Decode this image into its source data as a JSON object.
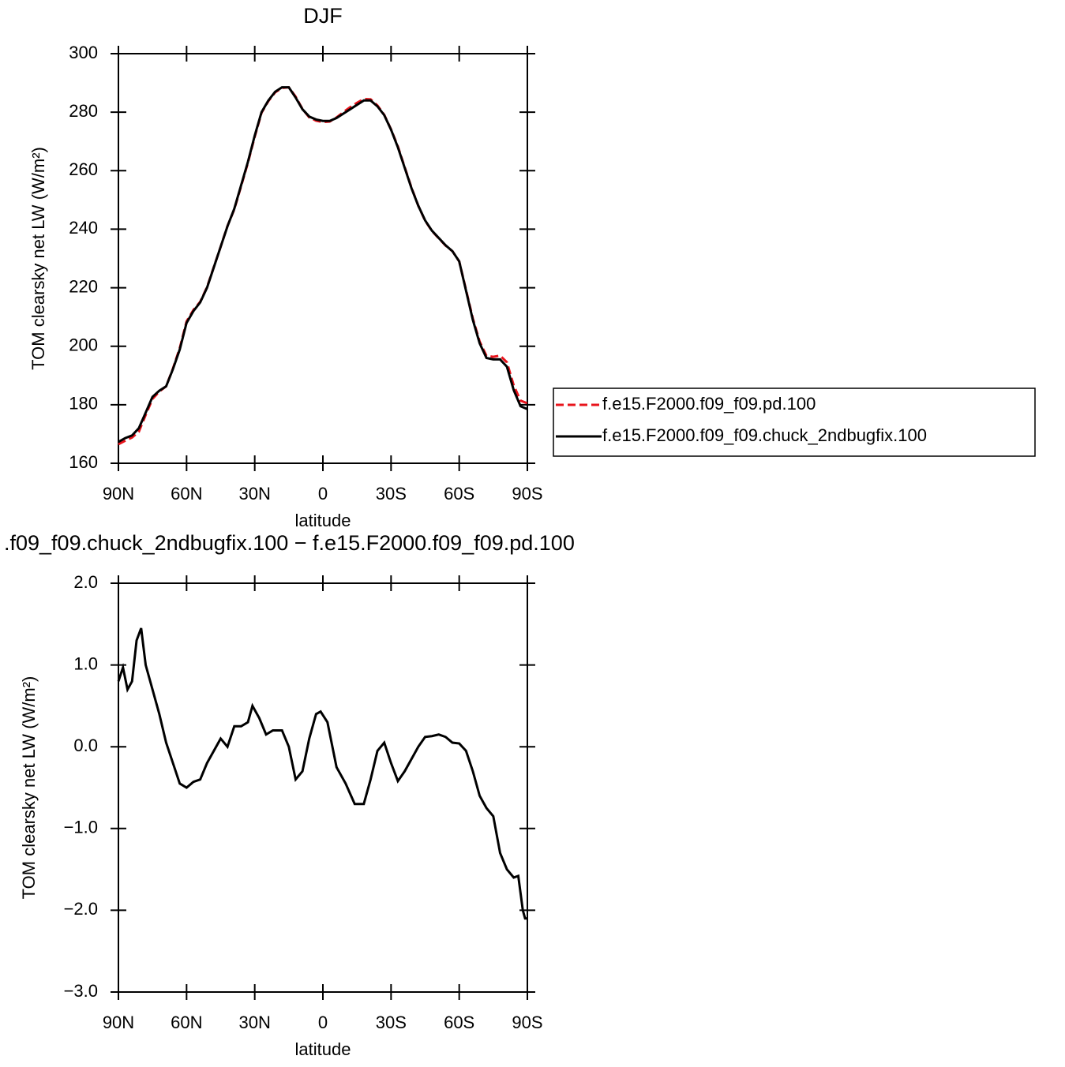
{
  "chart_data": [
    {
      "type": "line",
      "title": "DJF",
      "x_label": "latitude",
      "y_label": "TOM clearsky net LW (W/m²)",
      "x": [
        90,
        87,
        84,
        81,
        78,
        75,
        72,
        69,
        66,
        63,
        60,
        57,
        54,
        51,
        48,
        45,
        42,
        39,
        36,
        33,
        30,
        27,
        24,
        21,
        18,
        15,
        12,
        9,
        6,
        3,
        0,
        -3,
        -6,
        -9,
        -12,
        -15,
        -18,
        -21,
        -24,
        -27,
        -30,
        -33,
        -36,
        -39,
        -42,
        -45,
        -48,
        -51,
        -54,
        -57,
        -60,
        -63,
        -66,
        -69,
        -72,
        -75,
        -78,
        -81,
        -84,
        -87,
        -90
      ],
      "series": [
        {
          "name": "f.e15.F2000.f09_f09.pd.100",
          "color": "#e8141c",
          "dash": "dashed",
          "values": [
            166.5,
            167.7,
            168.8,
            170.8,
            176.5,
            182,
            184.5,
            186.3,
            192.4,
            199.4,
            208.5,
            212.4,
            215.2,
            220.2,
            227.1,
            234,
            241.1,
            246.8,
            254.7,
            262.7,
            271.6,
            279.8,
            283.8,
            286.8,
            288.3,
            288.5,
            285.3,
            281.1,
            278.2,
            277.1,
            276.6,
            276.8,
            278.2,
            280,
            281.7,
            283.2,
            284.5,
            284.4,
            282.3,
            279.1,
            274.1,
            268.3,
            261.2,
            254.2,
            248,
            242.9,
            239.4,
            236.9,
            234.4,
            232.5,
            229,
            219.3,
            209.5,
            201.6,
            196.7,
            196.4,
            196.8,
            194.5,
            186.6,
            181.4,
            180.5
          ]
        },
        {
          "name": "f.e15.F2000.f09_f09.chuck_2ndbugfix.100",
          "color": "#000000",
          "dash": "solid",
          "values": [
            167.3,
            168.6,
            169.5,
            172,
            177.3,
            182.7,
            184.8,
            186.3,
            192.2,
            198.9,
            208,
            212,
            215,
            220,
            227,
            234,
            241,
            247,
            255,
            263,
            272,
            280,
            284,
            287,
            288.5,
            288.5,
            285,
            281,
            278.5,
            277.5,
            277,
            277,
            278,
            279.5,
            281,
            282.5,
            284,
            284,
            282,
            279,
            274,
            268,
            261,
            254,
            248,
            243,
            239.5,
            237,
            234.5,
            232.5,
            229,
            219,
            209,
            201,
            196,
            195.5,
            195.5,
            193,
            185,
            179.5,
            178.5
          ]
        }
      ],
      "xlim": [
        90,
        -90
      ],
      "xticks": [
        {
          "value": 90,
          "label": "90N"
        },
        {
          "value": 60,
          "label": "60N"
        },
        {
          "value": 30,
          "label": "30N"
        },
        0,
        {
          "value": -30,
          "label": "30S"
        },
        {
          "value": -60,
          "label": "60S"
        },
        {
          "value": -90,
          "label": "90S"
        }
      ],
      "ylim": [
        160,
        300
      ],
      "yticks": [
        160,
        180,
        200,
        220,
        240,
        260,
        280,
        300
      ],
      "legend": "right",
      "grid": false
    },
    {
      "type": "line",
      "title": ".f09_f09.chuck_2ndbugfix.100 − f.e15.F2000.f09_f09.pd.100",
      "x_label": "latitude",
      "y_label": "TOM clearsky net LW (W/m²)",
      "x": [
        90,
        88,
        86,
        84,
        82,
        80,
        78,
        75,
        72,
        69,
        66,
        63,
        60,
        57,
        54,
        51,
        48,
        45,
        42,
        39,
        36,
        33,
        31,
        28,
        25,
        22,
        18,
        15,
        12,
        9,
        6,
        3,
        1,
        -2,
        -6,
        -10,
        -14,
        -18,
        -21,
        -24,
        -27,
        -30,
        -33,
        -36,
        -39,
        -42,
        -45,
        -48,
        -51,
        -54,
        -57,
        -60,
        -63,
        -66,
        -69,
        -72,
        -75,
        -78,
        -81,
        -84,
        -86,
        -88,
        -89,
        -90
      ],
      "series": [
        {
          "name": null,
          "color": "#000000",
          "dash": "solid",
          "values": [
            0.8,
            0.97,
            0.7,
            0.8,
            1.3,
            1.45,
            1.0,
            0.7,
            0.4,
            0.05,
            -0.2,
            -0.45,
            -0.5,
            -0.43,
            -0.4,
            -0.2,
            -0.05,
            0.1,
            0.0,
            0.25,
            0.25,
            0.3,
            0.5,
            0.35,
            0.15,
            0.2,
            0.2,
            0.0,
            -0.4,
            -0.3,
            0.1,
            0.4,
            0.43,
            0.3,
            -0.25,
            -0.45,
            -0.7,
            -0.7,
            -0.4,
            -0.05,
            0.05,
            -0.2,
            -0.42,
            -0.3,
            -0.15,
            0.0,
            0.12,
            0.13,
            0.15,
            0.12,
            0.05,
            0.04,
            -0.05,
            -0.3,
            -0.6,
            -0.75,
            -0.85,
            -1.3,
            -1.5,
            -1.6,
            -1.58,
            -2.0,
            -2.1,
            -2.1
          ]
        }
      ],
      "xlim": [
        90,
        -90
      ],
      "xticks": [
        {
          "value": 90,
          "label": "90N"
        },
        {
          "value": 60,
          "label": "60N"
        },
        {
          "value": 30,
          "label": "30N"
        },
        0,
        {
          "value": -30,
          "label": "30S"
        },
        {
          "value": -60,
          "label": "60S"
        },
        {
          "value": -90,
          "label": "90S"
        }
      ],
      "ylim": [
        -3,
        2
      ],
      "yticks": [
        {
          "value": -3,
          "label": "−3.0"
        },
        {
          "value": -2,
          "label": "−2.0"
        },
        {
          "value": -1,
          "label": "−1.0"
        },
        {
          "value": 0,
          "label": "0.0"
        },
        {
          "value": 1,
          "label": "1.0"
        },
        {
          "value": 2,
          "label": "2.0"
        }
      ],
      "grid": false
    }
  ]
}
